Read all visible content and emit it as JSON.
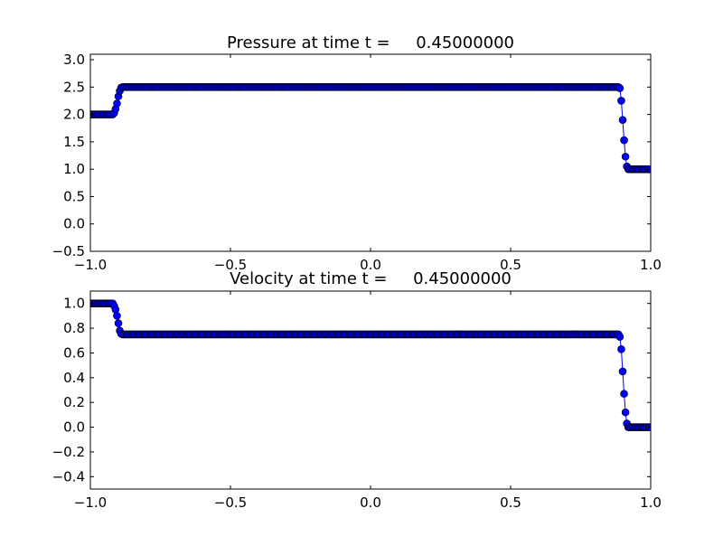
{
  "chart_data": [
    {
      "type": "line",
      "title": "Pressure at time t =     0.45000000",
      "xlabel": "",
      "ylabel": "",
      "xlim": [
        -1.0,
        1.0
      ],
      "ylim": [
        -0.5,
        3.1
      ],
      "xticks": [
        "-1.0",
        "-0.5",
        "0.0",
        "0.5",
        "1.0"
      ],
      "yticks": [
        "-0.5",
        "0.0",
        "0.5",
        "1.0",
        "1.5",
        "2.0",
        "2.5",
        "3.0"
      ],
      "grid": false,
      "line_color": "#0000ff",
      "marker": "circle",
      "x_grid": {
        "start": -1.0,
        "stop": 1.0,
        "step": 0.005
      },
      "points": [
        [
          -1.0,
          2.0
        ],
        [
          -0.92,
          2.0
        ],
        [
          -0.915,
          2.03
        ],
        [
          -0.91,
          2.1
        ],
        [
          -0.905,
          2.2
        ],
        [
          -0.9,
          2.33
        ],
        [
          -0.895,
          2.43
        ],
        [
          -0.89,
          2.49
        ],
        [
          -0.885,
          2.5
        ],
        [
          0.885,
          2.5
        ],
        [
          0.89,
          2.48
        ],
        [
          0.895,
          2.25
        ],
        [
          0.9,
          1.9
        ],
        [
          0.905,
          1.53
        ],
        [
          0.91,
          1.23
        ],
        [
          0.915,
          1.05
        ],
        [
          0.92,
          1.0
        ],
        [
          1.0,
          1.0
        ]
      ]
    },
    {
      "type": "line",
      "title": "Velocity at time t =     0.45000000",
      "xlabel": "",
      "ylabel": "",
      "xlim": [
        -1.0,
        1.0
      ],
      "ylim": [
        -0.5,
        1.1
      ],
      "xticks": [
        "-1.0",
        "-0.5",
        "0.0",
        "0.5",
        "1.0"
      ],
      "yticks": [
        "-0.4",
        "-0.2",
        "0.0",
        "0.2",
        "0.4",
        "0.6",
        "0.8",
        "1.0"
      ],
      "grid": false,
      "line_color": "#0000ff",
      "marker": "circle",
      "x_grid": {
        "start": -1.0,
        "stop": 1.0,
        "step": 0.005
      },
      "points": [
        [
          -1.0,
          1.0
        ],
        [
          -0.92,
          1.0
        ],
        [
          -0.915,
          0.98
        ],
        [
          -0.91,
          0.95
        ],
        [
          -0.905,
          0.9
        ],
        [
          -0.9,
          0.84
        ],
        [
          -0.895,
          0.78
        ],
        [
          -0.89,
          0.755
        ],
        [
          -0.885,
          0.75
        ],
        [
          0.885,
          0.75
        ],
        [
          0.89,
          0.73
        ],
        [
          0.895,
          0.63
        ],
        [
          0.9,
          0.45
        ],
        [
          0.905,
          0.27
        ],
        [
          0.91,
          0.12
        ],
        [
          0.915,
          0.03
        ],
        [
          0.92,
          0.0
        ],
        [
          1.0,
          0.0
        ]
      ]
    }
  ]
}
